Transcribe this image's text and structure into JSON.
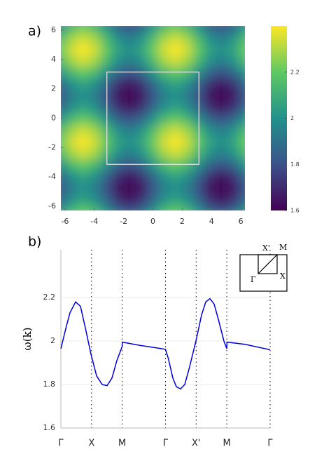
{
  "chart_data": [
    {
      "type": "heatmap",
      "panel_label": "a)",
      "x": [
        -6.283,
        -5.498,
        -4.712,
        -3.927,
        -3.142,
        -2.356,
        -1.571,
        -0.785,
        0,
        0.785,
        1.571,
        2.356,
        3.142,
        3.927,
        4.712,
        5.498,
        6.283
      ],
      "y": [
        -6.283,
        -5.498,
        -4.712,
        -3.927,
        -3.142,
        -2.356,
        -1.571,
        -0.785,
        0,
        0.785,
        1.571,
        2.356,
        3.142,
        3.927,
        4.712,
        5.498,
        6.283
      ],
      "z": [
        [
          2,
          2.141,
          2.2,
          2.141,
          2,
          1.859,
          1.8,
          1.859,
          2,
          2.141,
          2.2,
          2.141,
          2,
          1.859,
          1.8,
          1.859,
          2
        ],
        [
          1.859,
          2,
          2.059,
          2,
          1.859,
          1.718,
          1.659,
          1.718,
          1.859,
          2,
          2.059,
          2,
          1.859,
          1.718,
          1.659,
          1.718,
          1.859
        ],
        [
          1.8,
          1.941,
          2,
          1.941,
          1.8,
          1.659,
          1.6,
          1.659,
          1.8,
          1.941,
          2,
          1.941,
          1.8,
          1.659,
          1.6,
          1.659,
          1.8
        ],
        [
          1.859,
          2,
          2.059,
          2,
          1.859,
          1.718,
          1.659,
          1.718,
          1.859,
          2,
          2.059,
          2,
          1.859,
          1.718,
          1.659,
          1.718,
          1.859
        ],
        [
          2,
          2.141,
          2.2,
          2.141,
          2,
          1.859,
          1.8,
          1.859,
          2,
          2.141,
          2.2,
          2.141,
          2,
          1.859,
          1.8,
          1.859,
          2
        ],
        [
          2.141,
          2.282,
          2.341,
          2.282,
          2.141,
          2,
          1.941,
          2,
          2.141,
          2.282,
          2.341,
          2.282,
          2.141,
          2,
          1.941,
          2,
          2.141
        ],
        [
          2.2,
          2.341,
          2.4,
          2.341,
          2.2,
          2.059,
          2,
          2.059,
          2.2,
          2.341,
          2.4,
          2.341,
          2.2,
          2.059,
          2,
          2.059,
          2.2
        ],
        [
          2.141,
          2.282,
          2.341,
          2.282,
          2.141,
          2,
          1.941,
          2,
          2.141,
          2.282,
          2.341,
          2.282,
          2.141,
          2,
          1.941,
          2,
          2.141
        ],
        [
          2,
          2.141,
          2.2,
          2.141,
          2,
          1.859,
          1.8,
          1.859,
          2,
          2.141,
          2.2,
          2.141,
          2,
          1.859,
          1.8,
          1.859,
          2
        ],
        [
          1.859,
          2,
          2.059,
          2,
          1.859,
          1.718,
          1.659,
          1.718,
          1.859,
          2,
          2.059,
          2,
          1.859,
          1.718,
          1.659,
          1.718,
          1.859
        ],
        [
          1.8,
          1.941,
          2,
          1.941,
          1.8,
          1.659,
          1.6,
          1.659,
          1.8,
          1.941,
          2,
          1.941,
          1.8,
          1.659,
          1.6,
          1.659,
          1.8
        ],
        [
          1.859,
          2,
          2.059,
          2,
          1.859,
          1.718,
          1.659,
          1.718,
          1.859,
          2,
          2.059,
          2,
          1.859,
          1.718,
          1.659,
          1.718,
          1.859
        ],
        [
          2,
          2.141,
          2.2,
          2.141,
          2,
          1.859,
          1.8,
          1.859,
          2,
          2.141,
          2.2,
          2.141,
          2,
          1.859,
          1.8,
          1.859,
          2
        ],
        [
          2.141,
          2.282,
          2.341,
          2.282,
          2.141,
          2,
          1.941,
          2,
          2.141,
          2.282,
          2.341,
          2.282,
          2.141,
          2,
          1.941,
          2,
          2.141
        ],
        [
          2.2,
          2.341,
          2.4,
          2.341,
          2.2,
          2.059,
          2,
          2.059,
          2.2,
          2.341,
          2.4,
          2.341,
          2.2,
          2.059,
          2,
          2.059,
          2.2
        ],
        [
          2.141,
          2.282,
          2.341,
          2.282,
          2.141,
          2,
          1.941,
          2,
          2.141,
          2.282,
          2.341,
          2.282,
          2.141,
          2,
          1.941,
          2,
          2.141
        ],
        [
          2,
          2.141,
          2.2,
          2.141,
          2,
          1.859,
          1.8,
          1.859,
          2,
          2.141,
          2.2,
          2.141,
          2,
          1.859,
          1.8,
          1.859,
          2
        ]
      ],
      "xlim": [
        -6.283,
        6.283
      ],
      "ylim": [
        -6.283,
        6.283
      ],
      "xticks": [
        -6,
        -4,
        -2,
        0,
        2,
        4,
        6
      ],
      "yticks": [
        -6,
        -4,
        -2,
        0,
        2,
        4,
        6
      ],
      "zlim": [
        1.6,
        2.4
      ],
      "colorbar_ticks": [
        1.6,
        1.8,
        2,
        2.2
      ],
      "colormap": [
        "#440154",
        "#3b528b",
        "#21918c",
        "#5ec962",
        "#fde725"
      ],
      "box": {
        "x": [
          -3.142,
          3.142
        ],
        "y": [
          -3.142,
          3.142
        ]
      }
    },
    {
      "type": "line",
      "panel_label": "b)",
      "ylabel": "ω(k)",
      "color": "#0000dd",
      "x": [
        0,
        0.574,
        0.933,
        1.507,
        2.009,
        2.511,
        3.085,
        3.659,
        4.233,
        4.736,
        5.238,
        5.74,
        6.242,
        6.283,
        6.3,
        8.108,
        9.902,
        10.726,
        11.013,
        11.48,
        11.839,
        12.27,
        12.7,
        13.131,
        13.848,
        14.422,
        14.852,
        15.283,
        15.713,
        16.144,
        16.718,
        17.009,
        17.03,
        18.87,
        21.452
      ],
      "values": [
        1.965,
        2.07,
        2.13,
        2.18,
        2.16,
        2.06,
        1.94,
        1.84,
        1.8,
        1.795,
        1.83,
        1.91,
        1.97,
        1.975,
        1.995,
        1.98,
        1.968,
        1.962,
        1.92,
        1.83,
        1.79,
        1.78,
        1.8,
        1.87,
        2.0,
        2.12,
        2.18,
        2.195,
        2.17,
        2.1,
        2.0,
        1.965,
        1.995,
        1.985,
        1.96
      ],
      "xlim": [
        0,
        21.452
      ],
      "ylim": [
        1.6,
        2.42
      ],
      "xticks": [
        {
          "value": 0,
          "label": "Γ"
        },
        {
          "value": 3.142,
          "label": "X"
        },
        {
          "value": 6.283,
          "label": "M"
        },
        {
          "value": 10.726,
          "label": "Γ"
        },
        {
          "value": 13.868,
          "label": "X'"
        },
        {
          "value": 17.009,
          "label": "M"
        },
        {
          "value": 21.452,
          "label": "Γ"
        }
      ],
      "yticks": [
        1.6,
        1.8,
        2,
        2.2
      ],
      "grid": true,
      "inset_labels": [
        "X'",
        "M",
        "X",
        "Γ"
      ]
    }
  ]
}
